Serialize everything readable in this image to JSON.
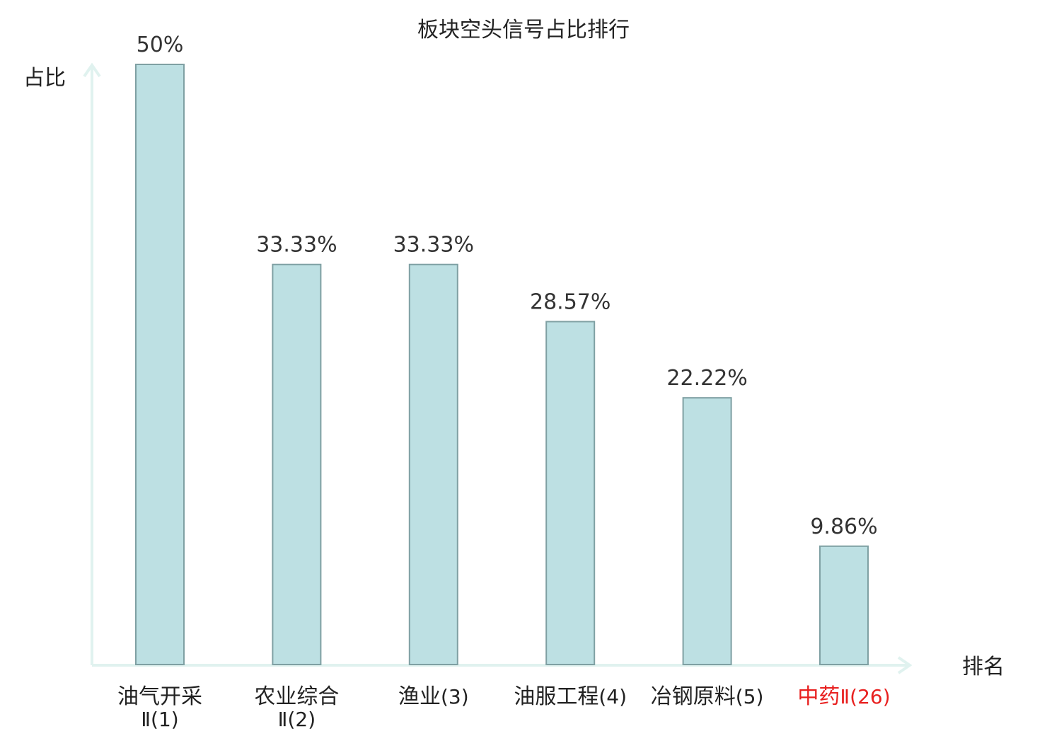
{
  "chart_data": {
    "type": "bar",
    "title": "板块空头信号占比排行",
    "ylabel": "占比",
    "xlabel": "排名",
    "ylim": [
      0,
      50
    ],
    "categories": [
      {
        "name": "油气开采",
        "rank": "Ⅱ(1)",
        "highlight": false
      },
      {
        "name": "农业综合",
        "rank": "Ⅱ(2)",
        "highlight": false
      },
      {
        "name": "渔业",
        "rank": "(3)",
        "highlight": false
      },
      {
        "name": "油服工程",
        "rank": "(4)",
        "highlight": false
      },
      {
        "name": "冶钢原料",
        "rank": "(5)",
        "highlight": false
      },
      {
        "name": "中药",
        "rank": "Ⅱ(26)",
        "highlight": true
      }
    ],
    "values": [
      50,
      33.33,
      33.33,
      28.57,
      22.22,
      9.86
    ],
    "value_labels": [
      "50%",
      "33.33%",
      "33.33%",
      "28.57%",
      "22.22%",
      "9.86%"
    ],
    "grid": false,
    "legend": "none"
  },
  "colors": {
    "bar_fill": "#bde0e3",
    "bar_stroke": "#7fa0a3",
    "axis": "#e0f2ef",
    "label_default": "#222222",
    "label_highlight": "#e8201f"
  }
}
